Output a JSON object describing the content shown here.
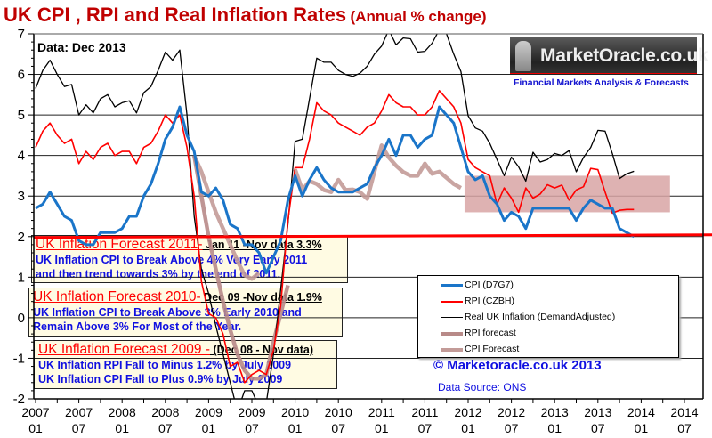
{
  "title": {
    "main": "UK CPI , RPI and Real Inflation Rates",
    "sub": "(Annual % change)"
  },
  "data_label": "Data:  Dec 2013",
  "logo": {
    "text": "MarketOracle.co.uk",
    "tagline": "Financial Markets Analysis & Forecasts"
  },
  "copyright": "© Marketoracle.co.uk  2013",
  "data_source": "Data Source: ONS",
  "annotations": [
    {
      "title": "UK Inflation  Forecast 2011-",
      "subtitle": " Jan 11 -Nov data 3.3%",
      "lines": [
        "UK Inflation CPI to Break Above 4% Very  Early  2011",
        "and then trend towards 3% by the end of 2011."
      ]
    },
    {
      "title": "UK Inflation  Forecast 2010-",
      "subtitle": " Dec 09 -Nov data 1.9%",
      "lines": [
        "UK Inflation CPI to Break Above 3% Early  2010 and",
        "Remain Above 3% For Most of the Year."
      ]
    },
    {
      "title": "UK Inflation  Forecast 2009 -",
      "subtitle": " (Dec 08 - Nov data)",
      "lines": [
        "UK Inflation RPI Fall to  Minus 1.2% by July 2009",
        "UK Inflation CPI Fall to Plus 0.9% by July 2009"
      ]
    }
  ],
  "chart_data": {
    "type": "line",
    "title": "UK CPI , RPI and Real Inflation Rates (Annual % change)",
    "xlabel": "",
    "ylabel": "",
    "ylim": [
      -2,
      7
    ],
    "xlim": [
      "2007-01",
      "2014-07"
    ],
    "y_ticks": [
      "-2",
      "-1",
      "0",
      "1",
      "2",
      "3",
      "4",
      "5",
      "6",
      "7"
    ],
    "x_ticks": [
      [
        "2007",
        "01"
      ],
      [
        "2007",
        "07"
      ],
      [
        "2008",
        "01"
      ],
      [
        "2008",
        "07"
      ],
      [
        "2009",
        "01"
      ],
      [
        "2009",
        "07"
      ],
      [
        "2010",
        "01"
      ],
      [
        "2010",
        "07"
      ],
      [
        "2011",
        "01"
      ],
      [
        "2011",
        "07"
      ],
      [
        "2012",
        "01"
      ],
      [
        "2012",
        "07"
      ],
      [
        "2013",
        "01"
      ],
      [
        "2013",
        "07"
      ],
      [
        "2014",
        "01"
      ],
      [
        "2014",
        "07"
      ]
    ],
    "grid": "horizontal",
    "legend_position": "bottom-right",
    "reference_line": {
      "y": 2.0,
      "color": "#ff0000"
    },
    "shaded_band": {
      "x": [
        "2011-12",
        "2014-05"
      ],
      "y": [
        2.6,
        3.5
      ],
      "color": "#d8a4a4"
    },
    "series": [
      {
        "name": "CPI (D7G7)",
        "color": "#1a75c9",
        "start": "2007-01",
        "values": [
          2.7,
          2.8,
          3.1,
          2.8,
          2.5,
          2.4,
          1.9,
          1.8,
          1.8,
          2.1,
          2.1,
          2.1,
          2.2,
          2.5,
          2.5,
          3.0,
          3.3,
          3.8,
          4.4,
          4.7,
          5.2,
          4.5,
          4.1,
          3.1,
          3.0,
          3.2,
          2.9,
          2.3,
          2.2,
          1.8,
          1.8,
          1.6,
          1.1,
          1.5,
          1.9,
          2.9,
          3.5,
          3.0,
          3.4,
          3.7,
          3.4,
          3.2,
          3.1,
          3.1,
          3.1,
          3.2,
          3.3,
          3.7,
          4.0,
          4.4,
          4.0,
          4.5,
          4.5,
          4.2,
          4.4,
          4.5,
          5.2,
          5.0,
          4.8,
          4.2,
          3.6,
          3.4,
          3.5,
          3.0,
          2.8,
          2.4,
          2.6,
          2.5,
          2.2,
          2.7,
          2.7,
          2.7,
          2.7,
          2.7,
          2.7,
          2.4,
          2.7,
          2.9,
          2.8,
          2.7,
          2.7,
          2.2,
          2.1,
          2.0
        ]
      },
      {
        "name": "RPI (CZBH)",
        "color": "#ff0000",
        "start": "2007-01",
        "values": [
          4.2,
          4.6,
          4.8,
          4.5,
          4.3,
          4.4,
          3.8,
          4.1,
          3.9,
          4.2,
          4.3,
          4.0,
          4.1,
          4.1,
          3.8,
          4.2,
          4.3,
          4.6,
          5.0,
          4.8,
          5.0,
          4.2,
          3.0,
          0.9,
          0.1,
          0.0,
          -0.4,
          -1.2,
          -1.1,
          -1.6,
          -1.4,
          -1.3,
          -1.4,
          -0.8,
          0.3,
          2.4,
          3.7,
          3.7,
          4.4,
          5.3,
          5.1,
          5.0,
          4.8,
          4.7,
          4.6,
          4.5,
          4.7,
          4.8,
          5.1,
          5.5,
          5.3,
          5.2,
          5.2,
          5.0,
          5.0,
          5.2,
          5.6,
          5.4,
          5.2,
          4.8,
          3.9,
          3.7,
          3.6,
          3.5,
          2.8,
          3.2,
          2.95,
          2.6,
          3.2,
          2.95,
          3.05,
          3.28,
          3.2,
          3.27,
          2.9,
          3.15,
          3.23,
          3.68,
          3.65,
          3.1,
          2.58,
          2.65,
          2.67,
          2.67
        ]
      },
      {
        "name": "Real UK Inflation (DemandAdjusted)",
        "color": "#000000",
        "start": "2007-01",
        "values": [
          5.65,
          6.1,
          6.35,
          6.0,
          5.7,
          5.75,
          5.0,
          5.25,
          5.05,
          5.4,
          5.5,
          5.2,
          5.3,
          5.35,
          5.05,
          5.55,
          5.7,
          6.1,
          6.55,
          6.35,
          6.6,
          5.0,
          2.5,
          1.2,
          0.6,
          -0.2,
          -0.9,
          -1.6,
          -2.3,
          -1.8,
          -1.8,
          -2.2,
          -2.1,
          -0.9,
          0.7,
          2.3,
          4.35,
          4.4,
          5.4,
          6.4,
          6.3,
          6.3,
          6.1,
          6.0,
          5.95,
          6.03,
          6.2,
          6.5,
          6.7,
          7.1,
          6.73,
          6.9,
          6.88,
          6.55,
          6.57,
          6.77,
          7.1,
          7.0,
          6.5,
          6.07,
          4.98,
          4.68,
          4.6,
          4.3,
          3.9,
          3.5,
          3.96,
          3.72,
          3.37,
          4.08,
          3.84,
          3.9,
          4.05,
          4.0,
          4.12,
          3.6,
          3.95,
          4.2,
          4.62,
          4.6,
          4.05,
          3.43,
          3.55,
          3.61
        ]
      },
      {
        "name": "RPI forecast",
        "color": "#b88a88",
        "start": "2008-11",
        "values": [
          4.0,
          3.0,
          2.0,
          1.2,
          0.4,
          -0.3,
          -0.9,
          -1.3,
          -1.5,
          -1.5,
          -1.4,
          -0.6,
          0.1,
          0.8
        ]
      },
      {
        "name": "CPI Forecast",
        "color": "#c39b98",
        "segments": [
          {
            "start": "2008-11",
            "values": [
              4.0,
              3.6,
              3.1,
              2.6,
              2.2,
              1.8,
              1.4,
              1.05,
              0.96,
              1.1
            ]
          },
          {
            "start": "2010-01",
            "values": [
              3.66,
              3.15,
              3.37,
              3.3,
              3.15,
              3.1,
              3.4,
              3.15,
              3.16,
              3.1,
              2.93,
              3.6,
              4.25,
              3.95,
              3.75,
              3.59,
              3.5,
              3.5,
              3.8,
              3.55,
              3.6,
              3.45,
              3.3,
              3.2
            ]
          }
        ]
      }
    ]
  }
}
